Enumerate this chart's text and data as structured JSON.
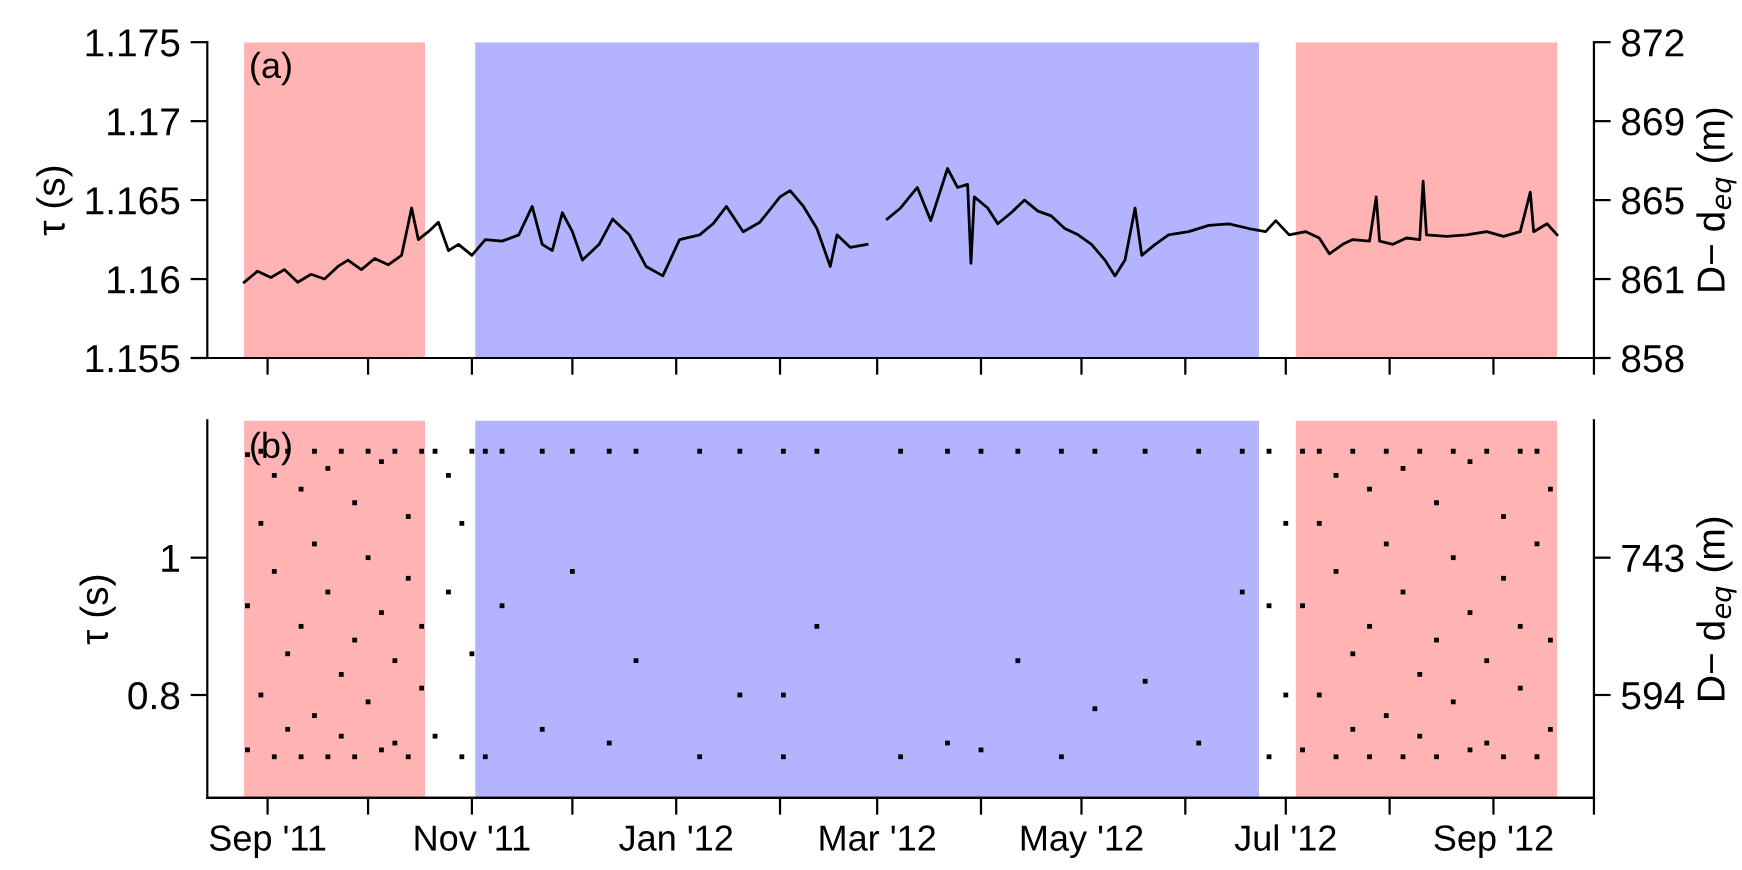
{
  "chart_data": [
    {
      "type": "line",
      "ylabel": "τ (s)",
      "y2label": "D− d$_{eq}$ (m)",
      "annotations": [
        "(a)"
      ],
      "tick_labels": "y",
      "grid": false,
      "xlim": [
        "2011-08-14",
        "2012-10-01"
      ],
      "xticks": [
        {
          "value": "2011-09-01",
          "label": null
        },
        {
          "value": "2011-10-01",
          "label": null
        },
        {
          "value": "2011-11-01",
          "label": null
        },
        {
          "value": "2011-12-01",
          "label": null
        },
        {
          "value": "2012-01-01",
          "label": null
        },
        {
          "value": "2012-02-01",
          "label": null
        },
        {
          "value": "2012-03-01",
          "label": null
        },
        {
          "value": "2012-04-01",
          "label": null
        },
        {
          "value": "2012-05-01",
          "label": null
        },
        {
          "value": "2012-06-01",
          "label": null
        },
        {
          "value": "2012-07-01",
          "label": null
        },
        {
          "value": "2012-08-01",
          "label": null
        },
        {
          "value": "2012-09-01",
          "label": null
        },
        {
          "value": "2012-10-01",
          "label": null
        }
      ],
      "ylim": [
        1.155,
        1.175
      ],
      "yticks": [
        1.155,
        1.16,
        1.165,
        1.17,
        1.175
      ],
      "y2lim": [
        857.6,
        872.4
      ],
      "y2ticks": [
        {
          "value": 857.6,
          "label": "858"
        },
        {
          "value": 861.3,
          "label": "861"
        },
        865,
        {
          "value": 868.7,
          "label": "869"
        },
        {
          "value": 872.4,
          "label": "872"
        }
      ],
      "bands": [
        {
          "axis": "x",
          "from": "2011-08-25",
          "to": "2011-10-18",
          "label": null,
          "color": "#ffb3b3"
        },
        {
          "axis": "x",
          "from": "2011-11-02",
          "to": "2012-06-23",
          "label": null,
          "color": "#b3b3ff"
        },
        {
          "axis": "x",
          "from": "2012-07-04",
          "to": "2012-09-20",
          "label": null,
          "color": "#ffb3b3"
        }
      ],
      "series": [
        {
          "color": "#000000",
          "x": [
            "2011-08-25",
            "2011-08-29",
            "2011-09-02",
            "2011-09-06",
            "2011-09-10",
            "2011-09-14",
            "2011-09-18",
            "2011-09-22",
            "2011-09-25",
            "2011-09-29",
            "2011-10-03",
            "2011-10-07",
            "2011-10-11",
            "2011-10-14",
            "2011-10-16",
            "2011-10-19",
            "2011-10-22",
            "2011-10-25",
            "2011-10-28",
            "2011-11-01",
            "2011-11-05",
            "2011-11-10",
            "2011-11-15",
            "2011-11-19",
            "2011-11-22",
            "2011-11-25",
            "2011-11-28",
            "2011-12-01",
            "2011-12-04",
            "2011-12-09",
            "2011-12-13",
            "2011-12-18",
            "2011-12-23",
            "2011-12-28",
            "2012-01-02",
            "2012-01-08",
            "2012-01-12",
            "2012-01-16",
            "2012-01-21",
            "2012-01-26",
            "2012-02-01",
            "2012-02-04",
            "2012-02-08",
            "2012-02-12",
            "2012-02-16",
            "2012-02-18",
            "2012-02-22",
            "2012-02-27",
            "2012-03-01",
            "2012-03-04",
            "2012-03-08",
            "2012-03-13",
            "2012-03-17",
            "2012-03-22",
            "2012-03-25",
            "2012-03-28",
            "2012-03-29",
            "2012-03-30",
            "2012-04-03",
            "2012-04-06",
            "2012-04-10",
            "2012-04-14",
            "2012-04-18",
            "2012-04-22",
            "2012-04-26",
            "2012-04-30",
            "2012-05-04",
            "2012-05-08",
            "2012-05-11",
            "2012-05-14",
            "2012-05-17",
            "2012-05-19",
            "2012-05-23",
            "2012-05-27",
            "2012-06-02",
            "2012-06-08",
            "2012-06-14",
            "2012-06-20",
            "2012-06-25",
            "2012-06-28",
            "2012-07-02",
            "2012-07-07",
            "2012-07-11",
            "2012-07-14",
            "2012-07-18",
            "2012-07-21",
            "2012-07-26",
            "2012-07-28",
            "2012-07-29",
            "2012-08-02",
            "2012-08-06",
            "2012-08-10",
            "2012-08-11",
            "2012-08-12",
            "2012-08-18",
            "2012-08-24",
            "2012-08-30",
            "2012-09-04",
            "2012-09-09",
            "2012-09-12",
            "2012-09-13",
            "2012-09-17",
            "2012-09-20"
          ],
          "values": [
            1.1598,
            1.1605,
            1.1601,
            1.1606,
            1.1598,
            1.1603,
            1.16,
            1.1608,
            1.1612,
            1.1606,
            1.1613,
            1.1609,
            1.1615,
            1.1645,
            1.1625,
            1.163,
            1.1636,
            1.1618,
            1.1622,
            1.1615,
            1.1625,
            1.1624,
            1.1628,
            1.1646,
            1.1622,
            1.1618,
            1.1642,
            1.163,
            1.1612,
            1.1622,
            1.1638,
            1.1628,
            1.1608,
            1.1602,
            1.1625,
            1.1628,
            1.1635,
            1.1646,
            1.163,
            1.1636,
            1.1652,
            1.1656,
            1.1646,
            1.1632,
            1.1608,
            1.1628,
            1.162,
            1.1622,
            null,
            1.1638,
            1.1645,
            1.1658,
            1.1637,
            1.167,
            1.1658,
            1.166,
            1.161,
            1.1652,
            1.1645,
            1.1635,
            1.1642,
            1.165,
            1.1643,
            1.164,
            1.1632,
            1.1628,
            1.1622,
            1.1612,
            1.1602,
            1.1612,
            1.1645,
            1.1615,
            1.1622,
            1.1628,
            1.163,
            1.1634,
            1.1635,
            1.1632,
            1.163,
            1.1637,
            1.1628,
            1.163,
            1.1626,
            1.1616,
            1.1622,
            1.1625,
            1.1624,
            1.1652,
            1.1624,
            1.1622,
            1.1626,
            1.1625,
            1.1662,
            1.1628,
            1.1627,
            1.1628,
            1.163,
            1.1627,
            1.163,
            1.1655,
            1.163,
            1.1635,
            1.1628
          ]
        }
      ]
    },
    {
      "type": "scatter",
      "ylabel": "τ (s)",
      "y2label": "D− d$_{eq}$ (m)",
      "annotations": [
        "(b)"
      ],
      "grid": false,
      "marker": "square",
      "xlim": [
        "2011-08-14",
        "2012-10-01"
      ],
      "xticks": [
        {
          "value": "2011-09-01",
          "label": "Sep '11"
        },
        {
          "value": "2011-10-01",
          "label": null
        },
        {
          "value": "2011-11-01",
          "label": "Nov '11"
        },
        {
          "value": "2011-12-01",
          "label": null
        },
        {
          "value": "2012-01-01",
          "label": "Jan '12"
        },
        {
          "value": "2012-02-01",
          "label": null
        },
        {
          "value": "2012-03-01",
          "label": "Mar '12"
        },
        {
          "value": "2012-04-01",
          "label": null
        },
        {
          "value": "2012-05-01",
          "label": "May '12"
        },
        {
          "value": "2012-06-01",
          "label": null
        },
        {
          "value": "2012-07-01",
          "label": "Jul '12"
        },
        {
          "value": "2012-08-01",
          "label": null
        },
        {
          "value": "2012-09-01",
          "label": "Sep '12"
        },
        {
          "value": "2012-10-01",
          "label": null
        }
      ],
      "ylim": [
        0.65,
        1.2
      ],
      "yticks": [
        0.8,
        1
      ],
      "y2lim": [
        482.6,
        891.0
      ],
      "y2ticks": [
        594,
        {
          "value": 742.5,
          "label": "743"
        }
      ],
      "bands": [
        {
          "axis": "x",
          "from": "2011-08-25",
          "to": "2011-10-18",
          "label": null,
          "color": "#ffb3b3"
        },
        {
          "axis": "x",
          "from": "2011-11-02",
          "to": "2012-06-23",
          "label": null,
          "color": "#b3b3ff"
        },
        {
          "axis": "x",
          "from": "2012-07-04",
          "to": "2012-09-20",
          "label": null,
          "color": "#ffb3b3"
        }
      ],
      "series": [
        {
          "color": "#000000",
          "x": [
            "2011-08-26",
            "2011-08-26",
            "2011-08-26",
            "2011-08-30",
            "2011-08-30",
            "2011-08-30",
            "2011-09-03",
            "2011-09-03",
            "2011-09-03",
            "2011-09-07",
            "2011-09-07",
            "2011-09-07",
            "2011-09-11",
            "2011-09-11",
            "2011-09-11",
            "2011-09-15",
            "2011-09-15",
            "2011-09-15",
            "2011-09-19",
            "2011-09-19",
            "2011-09-19",
            "2011-09-23",
            "2011-09-23",
            "2011-09-23",
            "2011-09-27",
            "2011-09-27",
            "2011-09-27",
            "2011-10-01",
            "2011-10-01",
            "2011-10-01",
            "2011-10-05",
            "2011-10-05",
            "2011-10-05",
            "2011-10-09",
            "2011-10-09",
            "2011-10-09",
            "2011-10-13",
            "2011-10-13",
            "2011-10-13",
            "2011-10-17",
            "2011-10-17",
            "2011-10-17",
            "2011-10-21",
            "2011-10-21",
            "2011-10-25",
            "2011-10-25",
            "2011-10-29",
            "2011-10-29",
            "2011-11-01",
            "2011-11-01",
            "2011-11-05",
            "2011-11-05",
            "2011-11-10",
            "2011-11-10",
            "2011-11-22",
            "2011-11-22",
            "2011-12-01",
            "2011-12-01",
            "2011-12-12",
            "2011-12-12",
            "2011-12-20",
            "2011-12-20",
            "2012-01-08",
            "2012-01-08",
            "2012-01-20",
            "2012-01-20",
            "2012-02-02",
            "2012-02-02",
            "2012-02-02",
            "2012-02-12",
            "2012-02-12",
            "2012-03-08",
            "2012-03-08",
            "2012-03-22",
            "2012-03-22",
            "2012-04-01",
            "2012-04-01",
            "2012-04-12",
            "2012-04-12",
            "2012-04-25",
            "2012-04-25",
            "2012-05-05",
            "2012-05-05",
            "2012-05-20",
            "2012-05-20",
            "2012-06-05",
            "2012-06-05",
            "2012-06-18",
            "2012-06-18",
            "2012-06-26",
            "2012-06-26",
            "2012-06-26",
            "2012-07-01",
            "2012-07-01",
            "2012-07-06",
            "2012-07-06",
            "2012-07-06",
            "2012-07-11",
            "2012-07-11",
            "2012-07-11",
            "2012-07-16",
            "2012-07-16",
            "2012-07-16",
            "2012-07-21",
            "2012-07-21",
            "2012-07-21",
            "2012-07-26",
            "2012-07-26",
            "2012-07-26",
            "2012-07-31",
            "2012-07-31",
            "2012-07-31",
            "2012-08-05",
            "2012-08-05",
            "2012-08-05",
            "2012-08-10",
            "2012-08-10",
            "2012-08-10",
            "2012-08-15",
            "2012-08-15",
            "2012-08-15",
            "2012-08-20",
            "2012-08-20",
            "2012-08-20",
            "2012-08-25",
            "2012-08-25",
            "2012-08-25",
            "2012-08-30",
            "2012-08-30",
            "2012-08-30",
            "2012-09-04",
            "2012-09-04",
            "2012-09-04",
            "2012-09-09",
            "2012-09-09",
            "2012-09-09",
            "2012-09-14",
            "2012-09-14",
            "2012-09-14",
            "2012-09-18",
            "2012-09-18",
            "2012-09-18"
          ],
          "values": [
            1.15,
            0.72,
            0.93,
            1.05,
            0.8,
            1.155,
            0.71,
            0.98,
            1.12,
            1.155,
            0.86,
            0.75,
            0.9,
            1.1,
            0.71,
            1.02,
            0.77,
            1.155,
            0.71,
            0.95,
            1.13,
            1.155,
            0.83,
            0.74,
            0.88,
            1.08,
            0.71,
            1.0,
            0.79,
            1.155,
            0.72,
            0.92,
            1.14,
            1.155,
            0.85,
            0.73,
            0.97,
            1.06,
            0.71,
            1.155,
            0.81,
            0.9,
            1.155,
            0.74,
            0.95,
            1.12,
            0.71,
            1.05,
            1.155,
            0.86,
            1.155,
            0.71,
            1.155,
            0.93,
            1.155,
            0.75,
            1.155,
            0.98,
            1.155,
            0.73,
            1.155,
            0.85,
            1.155,
            0.71,
            1.155,
            0.8,
            1.155,
            0.71,
            0.8,
            1.155,
            0.9,
            1.155,
            0.71,
            1.155,
            0.73,
            1.155,
            0.72,
            1.155,
            0.85,
            1.155,
            0.71,
            1.155,
            0.78,
            1.155,
            0.82,
            1.155,
            0.73,
            1.155,
            0.95,
            1.155,
            0.71,
            0.93,
            1.05,
            0.8,
            1.155,
            0.72,
            0.93,
            1.05,
            0.8,
            1.155,
            0.71,
            0.98,
            1.12,
            1.155,
            0.86,
            0.75,
            0.9,
            1.1,
            0.71,
            1.02,
            0.77,
            1.155,
            0.71,
            0.95,
            1.13,
            1.155,
            0.83,
            0.74,
            0.88,
            1.08,
            0.71,
            1.0,
            0.79,
            1.155,
            0.72,
            0.92,
            1.14,
            1.155,
            0.85,
            0.73,
            0.97,
            1.06,
            0.71,
            1.155,
            0.81,
            0.9,
            0.71,
            1.02,
            1.155,
            0.88,
            0.75,
            1.1
          ]
        }
      ]
    }
  ]
}
